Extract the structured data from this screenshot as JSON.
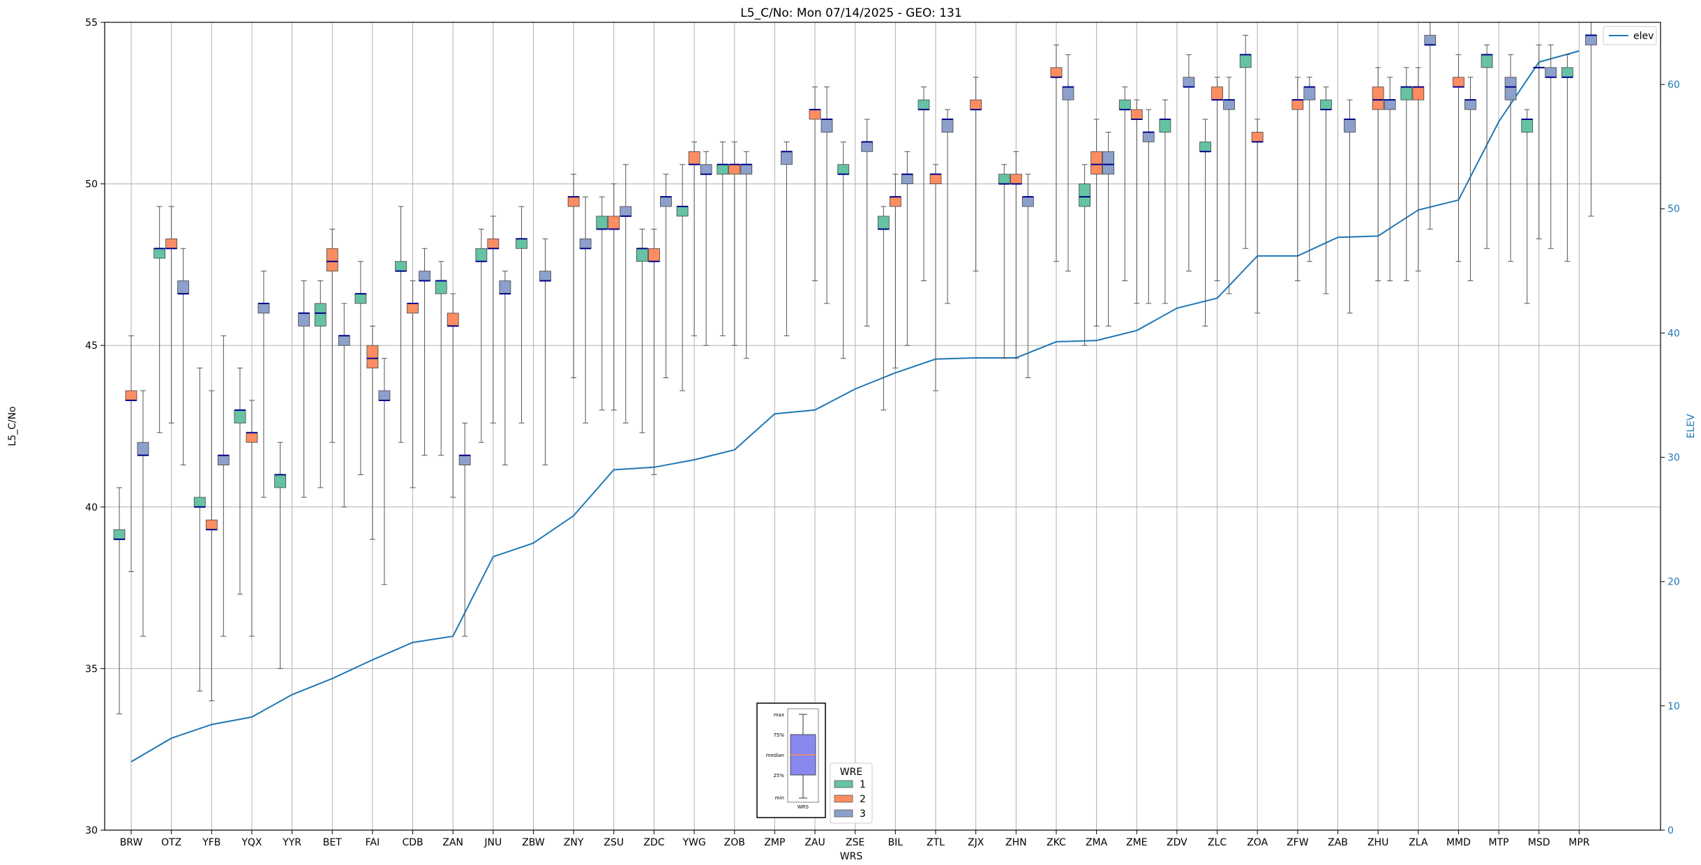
{
  "chart_data": {
    "type": "box",
    "title": "L5_C/No: Mon 07/14/2025 - GEO: 131",
    "xlabel": "WRS",
    "ylabel": "L5_C/No",
    "y2label": "ELEV",
    "ylim": [
      30,
      55
    ],
    "y2lim": [
      0,
      65
    ],
    "yticks": [
      30,
      35,
      40,
      45,
      50,
      55
    ],
    "y2ticks": [
      0,
      10,
      20,
      30,
      40,
      50,
      60
    ],
    "grid": true,
    "colors": {
      "wre1": "#66c2a5",
      "wre2": "#fc8d62",
      "wre3": "#8da0cb",
      "median": "#00008b",
      "elev": "#1f77b4",
      "whisker": "#555555"
    },
    "legend_elev": {
      "label": "elev",
      "placement": "top-right"
    },
    "legend_wre": {
      "title": "WRE",
      "labels": [
        "1",
        "2",
        "3"
      ],
      "placement": "lower-center"
    },
    "inset_key": {
      "labels": [
        "max",
        "75%",
        "median",
        "25%",
        "min"
      ],
      "caption": "WRS",
      "fill": "#8888ee",
      "median_color": "#fc8d62"
    },
    "categories": [
      "BRW",
      "OTZ",
      "YFB",
      "YQX",
      "YYR",
      "BET",
      "FAI",
      "CDB",
      "ZAN",
      "JNU",
      "ZBW",
      "ZNY",
      "ZSU",
      "ZDC",
      "YWG",
      "ZOB",
      "ZMP",
      "ZAU",
      "ZSE",
      "BIL",
      "ZTL",
      "ZJX",
      "ZHN",
      "ZKC",
      "ZMA",
      "ZME",
      "ZDV",
      "ZLC",
      "ZOA",
      "ZFW",
      "ZAB",
      "ZHU",
      "ZLA",
      "MMD",
      "MTP",
      "MSD",
      "MPR"
    ],
    "elev": [
      5.5,
      7.4,
      8.5,
      9.1,
      10.9,
      12.2,
      13.7,
      15.1,
      15.6,
      22.0,
      23.1,
      25.3,
      29.0,
      29.2,
      29.8,
      30.6,
      33.5,
      33.8,
      35.5,
      36.8,
      37.9,
      38.0,
      38.0,
      39.3,
      39.4,
      40.2,
      42.0,
      42.8,
      46.2,
      46.2,
      47.7,
      47.8,
      49.9,
      50.7,
      57.0,
      61.8,
      62.7
    ],
    "series": [
      {
        "name": "1",
        "boxes": [
          {
            "cat": 0,
            "min": 33.6,
            "q1": 39.0,
            "median": 39.0,
            "q3": 39.3,
            "max": 40.6
          },
          {
            "cat": 1,
            "min": 42.3,
            "q1": 47.7,
            "median": 48.0,
            "q3": 48.0,
            "max": 49.3
          },
          {
            "cat": 2,
            "min": 34.3,
            "q1": 40.0,
            "median": 40.0,
            "q3": 40.3,
            "max": 44.3
          },
          {
            "cat": 3,
            "min": 37.3,
            "q1": 42.6,
            "median": 43.0,
            "q3": 43.0,
            "max": 44.3
          },
          {
            "cat": 4,
            "min": 35.0,
            "q1": 40.6,
            "median": 41.0,
            "q3": 41.0,
            "max": 42.0
          },
          {
            "cat": 5,
            "min": 40.6,
            "q1": 45.6,
            "median": 46.0,
            "q3": 46.3,
            "max": 47.0
          },
          {
            "cat": 6,
            "min": 41.0,
            "q1": 46.3,
            "median": 46.6,
            "q3": 46.6,
            "max": 47.6
          },
          {
            "cat": 7,
            "min": 42.0,
            "q1": 47.3,
            "median": 47.3,
            "q3": 47.6,
            "max": 49.3
          },
          {
            "cat": 8,
            "min": 41.6,
            "q1": 46.6,
            "median": 47.0,
            "q3": 47.0,
            "max": 47.6
          },
          {
            "cat": 9,
            "min": 42.0,
            "q1": 47.6,
            "median": 47.6,
            "q3": 48.0,
            "max": 48.6
          },
          {
            "cat": 10,
            "min": 42.6,
            "q1": 48.0,
            "median": 48.3,
            "q3": 48.3,
            "max": 49.3
          },
          {
            "cat": 12,
            "min": 43.0,
            "q1": 48.6,
            "median": 48.6,
            "q3": 49.0,
            "max": 49.6
          },
          {
            "cat": 13,
            "min": 42.3,
            "q1": 47.6,
            "median": 48.0,
            "q3": 48.0,
            "max": 48.6
          },
          {
            "cat": 14,
            "min": 43.6,
            "q1": 49.0,
            "median": 49.3,
            "q3": 49.3,
            "max": 50.6
          },
          {
            "cat": 15,
            "min": 45.3,
            "q1": 50.3,
            "median": 50.6,
            "q3": 50.6,
            "max": 51.3
          },
          {
            "cat": 18,
            "min": 44.6,
            "q1": 50.3,
            "median": 50.3,
            "q3": 50.6,
            "max": 51.3
          },
          {
            "cat": 19,
            "min": 43.0,
            "q1": 48.6,
            "median": 48.6,
            "q3": 49.0,
            "max": 49.3
          },
          {
            "cat": 20,
            "min": 47.0,
            "q1": 52.3,
            "median": 52.3,
            "q3": 52.6,
            "max": 53.0
          },
          {
            "cat": 22,
            "min": 44.6,
            "q1": 50.0,
            "median": 50.0,
            "q3": 50.3,
            "max": 50.6
          },
          {
            "cat": 24,
            "min": 45.0,
            "q1": 49.3,
            "median": 49.6,
            "q3": 50.0,
            "max": 50.6
          },
          {
            "cat": 25,
            "min": 47.0,
            "q1": 52.3,
            "median": 52.3,
            "q3": 52.6,
            "max": 53.0
          },
          {
            "cat": 26,
            "min": 46.3,
            "q1": 51.6,
            "median": 52.0,
            "q3": 52.0,
            "max": 52.6
          },
          {
            "cat": 27,
            "min": 45.6,
            "q1": 51.0,
            "median": 51.0,
            "q3": 51.3,
            "max": 52.0
          },
          {
            "cat": 28,
            "min": 48.0,
            "q1": 53.6,
            "median": 54.0,
            "q3": 54.0,
            "max": 54.6
          },
          {
            "cat": 30,
            "min": 46.6,
            "q1": 52.3,
            "median": 52.3,
            "q3": 52.6,
            "max": 53.0
          },
          {
            "cat": 32,
            "min": 47.0,
            "q1": 52.6,
            "median": 53.0,
            "q3": 53.0,
            "max": 53.6
          },
          {
            "cat": 34,
            "min": 48.0,
            "q1": 53.6,
            "median": 54.0,
            "q3": 54.0,
            "max": 54.3
          },
          {
            "cat": 35,
            "min": 46.3,
            "q1": 51.6,
            "median": 52.0,
            "q3": 52.0,
            "max": 52.3
          },
          {
            "cat": 36,
            "min": 47.6,
            "q1": 53.3,
            "median": 53.3,
            "q3": 53.6,
            "max": 54.0
          }
        ]
      },
      {
        "name": "2",
        "boxes": [
          {
            "cat": 0,
            "min": 38.0,
            "q1": 43.3,
            "median": 43.3,
            "q3": 43.6,
            "max": 45.3
          },
          {
            "cat": 1,
            "min": 42.6,
            "q1": 48.0,
            "median": 48.0,
            "q3": 48.3,
            "max": 49.3
          },
          {
            "cat": 2,
            "min": 34.0,
            "q1": 39.3,
            "median": 39.3,
            "q3": 39.6,
            "max": 43.6
          },
          {
            "cat": 3,
            "min": 36.0,
            "q1": 42.0,
            "median": 42.3,
            "q3": 42.3,
            "max": 43.3
          },
          {
            "cat": 5,
            "min": 42.0,
            "q1": 47.3,
            "median": 47.6,
            "q3": 48.0,
            "max": 48.6
          },
          {
            "cat": 6,
            "min": 39.0,
            "q1": 44.3,
            "median": 44.6,
            "q3": 45.0,
            "max": 45.6
          },
          {
            "cat": 7,
            "min": 40.6,
            "q1": 46.0,
            "median": 46.3,
            "q3": 46.3,
            "max": 47.0
          },
          {
            "cat": 8,
            "min": 40.3,
            "q1": 45.6,
            "median": 45.6,
            "q3": 46.0,
            "max": 46.6
          },
          {
            "cat": 9,
            "min": 42.6,
            "q1": 48.0,
            "median": 48.0,
            "q3": 48.3,
            "max": 49.0
          },
          {
            "cat": 11,
            "min": 44.0,
            "q1": 49.3,
            "median": 49.6,
            "q3": 49.6,
            "max": 50.3
          },
          {
            "cat": 12,
            "min": 43.0,
            "q1": 48.6,
            "median": 48.6,
            "q3": 49.0,
            "max": 50.0
          },
          {
            "cat": 13,
            "min": 41.0,
            "q1": 47.6,
            "median": 47.6,
            "q3": 48.0,
            "max": 48.6
          },
          {
            "cat": 14,
            "min": 45.3,
            "q1": 50.6,
            "median": 50.6,
            "q3": 51.0,
            "max": 51.3
          },
          {
            "cat": 15,
            "min": 45.0,
            "q1": 50.3,
            "median": 50.6,
            "q3": 50.6,
            "max": 51.3
          },
          {
            "cat": 17,
            "min": 47.0,
            "q1": 52.0,
            "median": 52.3,
            "q3": 52.3,
            "max": 53.0
          },
          {
            "cat": 19,
            "min": 44.3,
            "q1": 49.3,
            "median": 49.6,
            "q3": 49.6,
            "max": 50.3
          },
          {
            "cat": 20,
            "min": 43.6,
            "q1": 50.0,
            "median": 50.3,
            "q3": 50.3,
            "max": 50.6
          },
          {
            "cat": 21,
            "min": 47.3,
            "q1": 52.3,
            "median": 52.3,
            "q3": 52.6,
            "max": 53.3
          },
          {
            "cat": 22,
            "min": 44.6,
            "q1": 50.0,
            "median": 50.0,
            "q3": 50.3,
            "max": 51.0
          },
          {
            "cat": 23,
            "min": 47.6,
            "q1": 53.3,
            "median": 53.3,
            "q3": 53.6,
            "max": 54.3
          },
          {
            "cat": 24,
            "min": 45.6,
            "q1": 50.3,
            "median": 50.6,
            "q3": 51.0,
            "max": 52.0
          },
          {
            "cat": 25,
            "min": 46.3,
            "q1": 52.0,
            "median": 52.0,
            "q3": 52.3,
            "max": 52.6
          },
          {
            "cat": 27,
            "min": 47.0,
            "q1": 52.6,
            "median": 52.6,
            "q3": 53.0,
            "max": 53.3
          },
          {
            "cat": 28,
            "min": 46.0,
            "q1": 51.3,
            "median": 51.3,
            "q3": 51.6,
            "max": 52.0
          },
          {
            "cat": 29,
            "min": 47.0,
            "q1": 52.3,
            "median": 52.6,
            "q3": 52.6,
            "max": 53.3
          },
          {
            "cat": 31,
            "min": 47.0,
            "q1": 52.3,
            "median": 52.6,
            "q3": 53.0,
            "max": 53.6
          },
          {
            "cat": 32,
            "min": 47.3,
            "q1": 52.6,
            "median": 53.0,
            "q3": 53.0,
            "max": 53.6
          },
          {
            "cat": 33,
            "min": 47.6,
            "q1": 53.0,
            "median": 53.0,
            "q3": 53.3,
            "max": 54.0
          },
          {
            "cat": 35,
            "min": 48.3,
            "q1": 53.6,
            "median": 53.6,
            "q3": 53.6,
            "max": 54.3
          }
        ]
      },
      {
        "name": "3",
        "boxes": [
          {
            "cat": 0,
            "min": 36.0,
            "q1": 41.6,
            "median": 41.6,
            "q3": 42.0,
            "max": 43.6
          },
          {
            "cat": 1,
            "min": 41.3,
            "q1": 46.6,
            "median": 46.6,
            "q3": 47.0,
            "max": 48.0
          },
          {
            "cat": 2,
            "min": 36.0,
            "q1": 41.3,
            "median": 41.6,
            "q3": 41.6,
            "max": 45.3
          },
          {
            "cat": 3,
            "min": 40.3,
            "q1": 46.0,
            "median": 46.3,
            "q3": 46.3,
            "max": 47.3
          },
          {
            "cat": 4,
            "min": 40.3,
            "q1": 45.6,
            "median": 46.0,
            "q3": 46.0,
            "max": 47.0
          },
          {
            "cat": 5,
            "min": 40.0,
            "q1": 45.0,
            "median": 45.3,
            "q3": 45.3,
            "max": 46.3
          },
          {
            "cat": 6,
            "min": 37.6,
            "q1": 43.3,
            "median": 43.3,
            "q3": 43.6,
            "max": 44.6
          },
          {
            "cat": 7,
            "min": 41.6,
            "q1": 47.0,
            "median": 47.0,
            "q3": 47.3,
            "max": 48.0
          },
          {
            "cat": 8,
            "min": 36.0,
            "q1": 41.3,
            "median": 41.6,
            "q3": 41.6,
            "max": 42.6
          },
          {
            "cat": 9,
            "min": 41.3,
            "q1": 46.6,
            "median": 46.6,
            "q3": 47.0,
            "max": 47.3
          },
          {
            "cat": 10,
            "min": 41.3,
            "q1": 47.0,
            "median": 47.0,
            "q3": 47.3,
            "max": 48.3
          },
          {
            "cat": 11,
            "min": 42.6,
            "q1": 48.0,
            "median": 48.0,
            "q3": 48.3,
            "max": 49.6
          },
          {
            "cat": 12,
            "min": 42.6,
            "q1": 49.0,
            "median": 49.0,
            "q3": 49.3,
            "max": 50.6
          },
          {
            "cat": 13,
            "min": 44.0,
            "q1": 49.3,
            "median": 49.6,
            "q3": 49.6,
            "max": 50.3
          },
          {
            "cat": 14,
            "min": 45.0,
            "q1": 50.3,
            "median": 50.3,
            "q3": 50.6,
            "max": 51.0
          },
          {
            "cat": 15,
            "min": 44.6,
            "q1": 50.3,
            "median": 50.6,
            "q3": 50.6,
            "max": 51.0
          },
          {
            "cat": 16,
            "min": 45.3,
            "q1": 50.6,
            "median": 51.0,
            "q3": 51.0,
            "max": 51.3
          },
          {
            "cat": 17,
            "min": 46.3,
            "q1": 51.6,
            "median": 52.0,
            "q3": 52.0,
            "max": 53.0
          },
          {
            "cat": 18,
            "min": 45.6,
            "q1": 51.0,
            "median": 51.3,
            "q3": 51.3,
            "max": 52.0
          },
          {
            "cat": 19,
            "min": 45.0,
            "q1": 50.0,
            "median": 50.3,
            "q3": 50.3,
            "max": 51.0
          },
          {
            "cat": 20,
            "min": 46.3,
            "q1": 51.6,
            "median": 52.0,
            "q3": 52.0,
            "max": 52.3
          },
          {
            "cat": 22,
            "min": 44.0,
            "q1": 49.3,
            "median": 49.6,
            "q3": 49.6,
            "max": 50.3
          },
          {
            "cat": 23,
            "min": 47.3,
            "q1": 52.6,
            "median": 53.0,
            "q3": 53.0,
            "max": 54.0
          },
          {
            "cat": 24,
            "min": 45.6,
            "q1": 50.3,
            "median": 50.6,
            "q3": 51.0,
            "max": 51.6
          },
          {
            "cat": 25,
            "min": 46.3,
            "q1": 51.3,
            "median": 51.6,
            "q3": 51.6,
            "max": 52.3
          },
          {
            "cat": 26,
            "min": 47.3,
            "q1": 53.0,
            "median": 53.0,
            "q3": 53.3,
            "max": 54.0
          },
          {
            "cat": 27,
            "min": 46.6,
            "q1": 52.3,
            "median": 52.6,
            "q3": 52.6,
            "max": 53.3
          },
          {
            "cat": 29,
            "min": 47.6,
            "q1": 52.6,
            "median": 53.0,
            "q3": 53.0,
            "max": 53.3
          },
          {
            "cat": 30,
            "min": 46.0,
            "q1": 51.6,
            "median": 52.0,
            "q3": 52.0,
            "max": 52.6
          },
          {
            "cat": 31,
            "min": 47.0,
            "q1": 52.3,
            "median": 52.6,
            "q3": 52.6,
            "max": 53.3
          },
          {
            "cat": 32,
            "min": 48.6,
            "q1": 54.3,
            "median": 54.3,
            "q3": 54.6,
            "max": 55.0
          },
          {
            "cat": 33,
            "min": 47.0,
            "q1": 52.3,
            "median": 52.6,
            "q3": 52.6,
            "max": 53.3
          },
          {
            "cat": 34,
            "min": 47.6,
            "q1": 52.6,
            "median": 53.0,
            "q3": 53.3,
            "max": 54.0
          },
          {
            "cat": 35,
            "min": 48.0,
            "q1": 53.3,
            "median": 53.3,
            "q3": 53.6,
            "max": 54.3
          },
          {
            "cat": 36,
            "min": 49.0,
            "q1": 54.3,
            "median": 54.6,
            "q3": 54.6,
            "max": 55.0
          }
        ]
      }
    ]
  }
}
